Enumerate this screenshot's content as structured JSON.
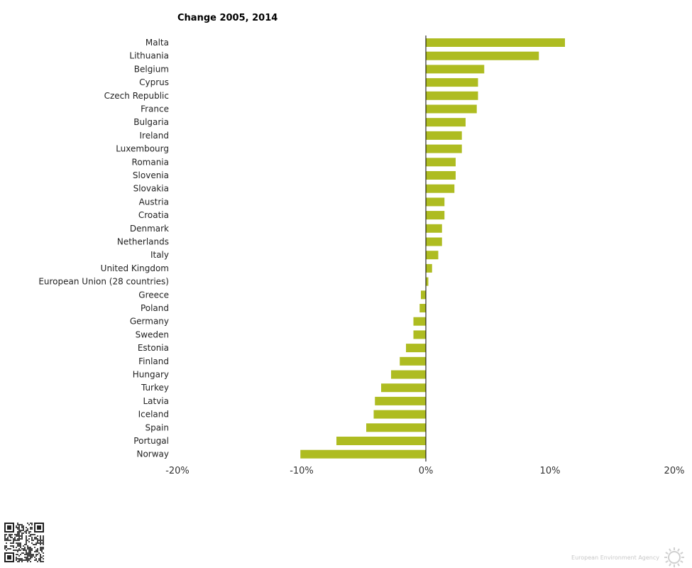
{
  "chart_data": {
    "type": "bar",
    "orientation": "horizontal",
    "title": "Change 2005, 2014",
    "xlabel": "",
    "ylabel": "",
    "xlim": [
      -0.2,
      0.2
    ],
    "x_ticks": [
      -0.2,
      -0.1,
      0,
      0.1,
      0.2
    ],
    "x_tick_labels": [
      "-20%",
      "-10%",
      "0%",
      "10%",
      "20%"
    ],
    "grid": false,
    "legend": "none",
    "bar_color": "#aebc21",
    "categories": [
      "Malta",
      "Lithuania",
      "Belgium",
      "Cyprus",
      "Czech Republic",
      "France",
      "Bulgaria",
      "Ireland",
      "Luxembourg",
      "Romania",
      "Slovenia",
      "Slovakia",
      "Austria",
      "Croatia",
      "Denmark",
      "Netherlands",
      "Italy",
      "United Kingdom",
      "European Union (28 countries)",
      "Greece",
      "Poland",
      "Germany",
      "Sweden",
      "Estonia",
      "Finland",
      "Hungary",
      "Turkey",
      "Latvia",
      "Iceland",
      "Spain",
      "Portugal",
      "Norway"
    ],
    "values": [
      0.112,
      0.091,
      0.047,
      0.042,
      0.042,
      0.041,
      0.032,
      0.029,
      0.029,
      0.024,
      0.024,
      0.023,
      0.015,
      0.015,
      0.013,
      0.013,
      0.01,
      0.005,
      0.002,
      -0.004,
      -0.005,
      -0.01,
      -0.01,
      -0.016,
      -0.021,
      -0.028,
      -0.036,
      -0.041,
      -0.042,
      -0.048,
      -0.072,
      -0.101
    ]
  },
  "footer": {
    "agency": "European Environment Agency",
    "qr_icon": "qr-code-icon",
    "logo_icon": "eea-sun-logo-icon"
  }
}
